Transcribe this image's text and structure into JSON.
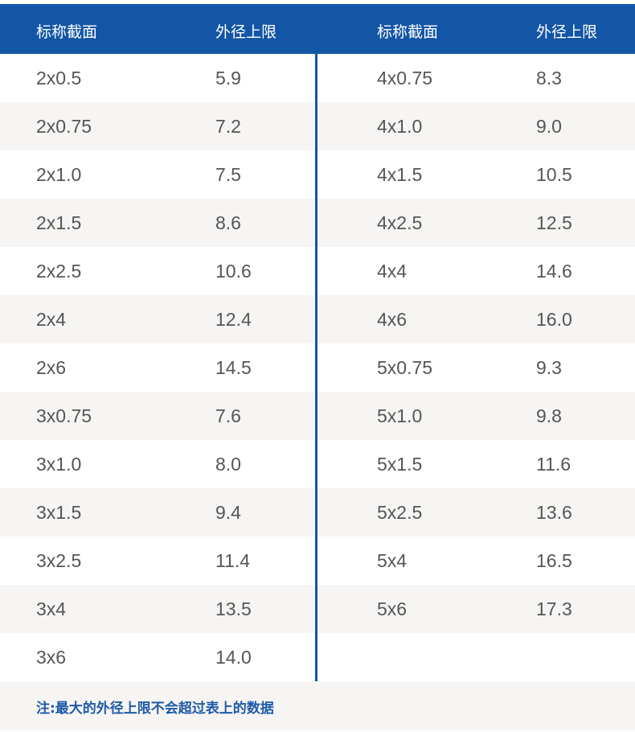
{
  "header": {
    "col1": "标称截面",
    "col2": "外径上限",
    "col3": "标称截面",
    "col4": "外径上限"
  },
  "colors": {
    "header_bg": "#1456a6",
    "note_text": "#1f5aa8",
    "alt_row": "#f6f5f3"
  },
  "left_table": [
    [
      "2x0.5",
      "5.9"
    ],
    [
      "2x0.75",
      "7.2"
    ],
    [
      "2x1.0",
      "7.5"
    ],
    [
      "2x1.5",
      "8.6"
    ],
    [
      "2x2.5",
      "10.6"
    ],
    [
      "2x4",
      "12.4"
    ],
    [
      "2x6",
      "14.5"
    ],
    [
      "3x0.75",
      "7.6"
    ],
    [
      "3x1.0",
      "8.0"
    ],
    [
      "3x1.5",
      "9.4"
    ],
    [
      "3x2.5",
      "11.4"
    ],
    [
      "3x4",
      "13.5"
    ],
    [
      "3x6",
      "14.0"
    ]
  ],
  "right_table": [
    [
      "4x0.75",
      "8.3"
    ],
    [
      "4x1.0",
      "9.0"
    ],
    [
      "4x1.5",
      "10.5"
    ],
    [
      "4x2.5",
      "12.5"
    ],
    [
      "4x4",
      "14.6"
    ],
    [
      "4x6",
      "16.0"
    ],
    [
      "5x0.75",
      "9.3"
    ],
    [
      "5x1.0",
      "9.8"
    ],
    [
      "5x1.5",
      "11.6"
    ],
    [
      "5x2.5",
      "13.6"
    ],
    [
      "5x4",
      "16.5"
    ],
    [
      "5x6",
      "17.3"
    ]
  ],
  "note": "注:最大的外径上限不会超过表上的数据"
}
